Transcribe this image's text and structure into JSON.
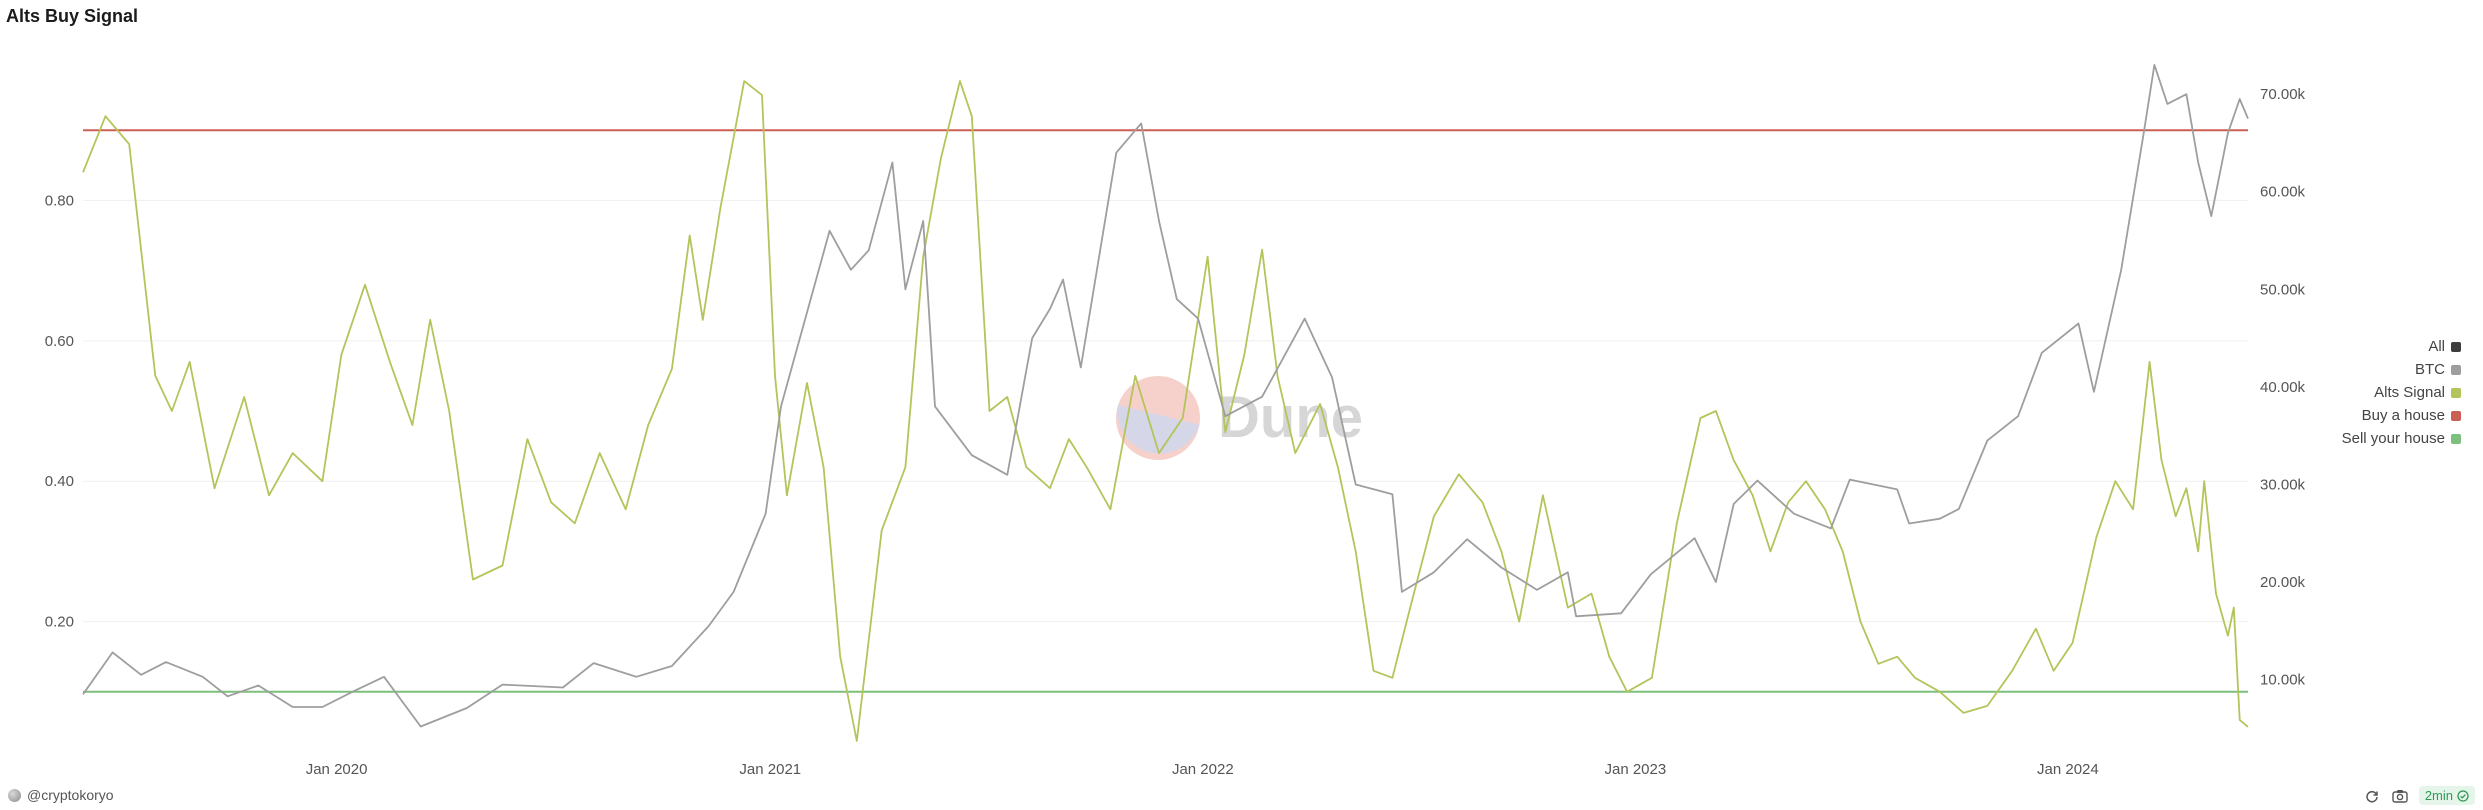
{
  "title": "Alts Buy Signal",
  "author": "@cryptokoryo",
  "refresh_label": "2min",
  "watermark": "Dune",
  "legend": [
    {
      "label": "All",
      "color": "#3d3d3d"
    },
    {
      "label": "BTC",
      "color": "#9e9e9e"
    },
    {
      "label": "Alts Signal",
      "color": "#b5c45a"
    },
    {
      "label": "Buy a house",
      "color": "#cc5f55"
    },
    {
      "label": "Sell your house",
      "color": "#7dbf7d"
    }
  ],
  "icons": {
    "refresh": "refresh-icon",
    "camera": "camera-icon",
    "check": "check-icon"
  },
  "chart_data": {
    "type": "line",
    "x_range": [
      "2019-06-01",
      "2024-06-01"
    ],
    "x_ticks": [
      "Jan 2020",
      "Jan 2021",
      "Jan 2022",
      "Jan 2023",
      "Jan 2024"
    ],
    "left_axis": {
      "ticks": [
        "0.20",
        "0.40",
        "0.60",
        "0.80"
      ],
      "range": [
        0.02,
        1.0
      ]
    },
    "right_axis": {
      "ticks": [
        "10.00k",
        "20.00k",
        "30.00k",
        "40.00k",
        "50.00k",
        "60.00k",
        "70.00k"
      ],
      "range": [
        3000,
        73500
      ]
    },
    "grid": true,
    "series": [
      {
        "name": "Alts Signal",
        "axis": "left",
        "color": "#b5c45a",
        "points": [
          [
            "2019-06-01",
            0.84
          ],
          [
            "2019-06-20",
            0.92
          ],
          [
            "2019-07-10",
            0.88
          ],
          [
            "2019-08-01",
            0.55
          ],
          [
            "2019-08-15",
            0.5
          ],
          [
            "2019-08-30",
            0.57
          ],
          [
            "2019-09-20",
            0.39
          ],
          [
            "2019-10-15",
            0.52
          ],
          [
            "2019-11-05",
            0.38
          ],
          [
            "2019-11-25",
            0.44
          ],
          [
            "2019-12-20",
            0.4
          ],
          [
            "2020-01-05",
            0.58
          ],
          [
            "2020-01-25",
            0.68
          ],
          [
            "2020-02-15",
            0.57
          ],
          [
            "2020-03-05",
            0.48
          ],
          [
            "2020-03-20",
            0.63
          ],
          [
            "2020-04-05",
            0.5
          ],
          [
            "2020-04-25",
            0.26
          ],
          [
            "2020-05-20",
            0.28
          ],
          [
            "2020-06-10",
            0.46
          ],
          [
            "2020-06-30",
            0.37
          ],
          [
            "2020-07-20",
            0.34
          ],
          [
            "2020-08-10",
            0.44
          ],
          [
            "2020-09-01",
            0.36
          ],
          [
            "2020-09-20",
            0.48
          ],
          [
            "2020-10-10",
            0.56
          ],
          [
            "2020-10-25",
            0.75
          ],
          [
            "2020-11-05",
            0.63
          ],
          [
            "2020-11-20",
            0.79
          ],
          [
            "2020-12-10",
            0.97
          ],
          [
            "2020-12-25",
            0.95
          ],
          [
            "2021-01-05",
            0.55
          ],
          [
            "2021-01-15",
            0.38
          ],
          [
            "2021-02-01",
            0.54
          ],
          [
            "2021-02-15",
            0.42
          ],
          [
            "2021-03-01",
            0.15
          ],
          [
            "2021-03-15",
            0.03
          ],
          [
            "2021-04-05",
            0.33
          ],
          [
            "2021-04-25",
            0.42
          ],
          [
            "2021-05-10",
            0.72
          ],
          [
            "2021-05-25",
            0.86
          ],
          [
            "2021-06-10",
            0.97
          ],
          [
            "2021-06-20",
            0.92
          ],
          [
            "2021-07-05",
            0.5
          ],
          [
            "2021-07-20",
            0.52
          ],
          [
            "2021-08-05",
            0.42
          ],
          [
            "2021-08-25",
            0.39
          ],
          [
            "2021-09-10",
            0.46
          ],
          [
            "2021-09-25",
            0.42
          ],
          [
            "2021-10-15",
            0.36
          ],
          [
            "2021-11-05",
            0.55
          ],
          [
            "2021-11-25",
            0.44
          ],
          [
            "2021-12-15",
            0.49
          ],
          [
            "2022-01-05",
            0.72
          ],
          [
            "2022-01-20",
            0.47
          ],
          [
            "2022-02-05",
            0.58
          ],
          [
            "2022-02-20",
            0.73
          ],
          [
            "2022-03-05",
            0.55
          ],
          [
            "2022-03-20",
            0.44
          ],
          [
            "2022-04-10",
            0.51
          ],
          [
            "2022-04-25",
            0.42
          ],
          [
            "2022-05-10",
            0.3
          ],
          [
            "2022-05-25",
            0.13
          ],
          [
            "2022-06-10",
            0.12
          ],
          [
            "2022-06-25",
            0.22
          ],
          [
            "2022-07-15",
            0.35
          ],
          [
            "2022-08-05",
            0.41
          ],
          [
            "2022-08-25",
            0.37
          ],
          [
            "2022-09-10",
            0.3
          ],
          [
            "2022-09-25",
            0.2
          ],
          [
            "2022-10-15",
            0.38
          ],
          [
            "2022-11-05",
            0.22
          ],
          [
            "2022-11-25",
            0.24
          ],
          [
            "2022-12-10",
            0.15
          ],
          [
            "2022-12-25",
            0.1
          ],
          [
            "2023-01-15",
            0.12
          ],
          [
            "2023-02-05",
            0.34
          ],
          [
            "2023-02-25",
            0.49
          ],
          [
            "2023-03-10",
            0.5
          ],
          [
            "2023-03-25",
            0.43
          ],
          [
            "2023-04-10",
            0.38
          ],
          [
            "2023-04-25",
            0.3
          ],
          [
            "2023-05-10",
            0.37
          ],
          [
            "2023-05-25",
            0.4
          ],
          [
            "2023-06-10",
            0.36
          ],
          [
            "2023-06-25",
            0.3
          ],
          [
            "2023-07-10",
            0.2
          ],
          [
            "2023-07-25",
            0.14
          ],
          [
            "2023-08-10",
            0.15
          ],
          [
            "2023-08-25",
            0.12
          ],
          [
            "2023-09-15",
            0.1
          ],
          [
            "2023-10-05",
            0.07
          ],
          [
            "2023-10-25",
            0.08
          ],
          [
            "2023-11-15",
            0.13
          ],
          [
            "2023-12-05",
            0.19
          ],
          [
            "2023-12-20",
            0.13
          ],
          [
            "2024-01-05",
            0.17
          ],
          [
            "2024-01-25",
            0.32
          ],
          [
            "2024-02-10",
            0.4
          ],
          [
            "2024-02-25",
            0.36
          ],
          [
            "2024-03-10",
            0.57
          ],
          [
            "2024-03-20",
            0.43
          ],
          [
            "2024-04-01",
            0.35
          ],
          [
            "2024-04-10",
            0.39
          ],
          [
            "2024-04-20",
            0.3
          ],
          [
            "2024-04-25",
            0.4
          ],
          [
            "2024-05-05",
            0.24
          ],
          [
            "2024-05-15",
            0.18
          ],
          [
            "2024-05-20",
            0.22
          ],
          [
            "2024-05-25",
            0.06
          ],
          [
            "2024-06-01",
            0.05
          ]
        ]
      },
      {
        "name": "BTC",
        "axis": "right",
        "color": "#9e9e9e",
        "points": [
          [
            "2019-06-01",
            8500
          ],
          [
            "2019-06-26",
            12800
          ],
          [
            "2019-07-20",
            10500
          ],
          [
            "2019-08-10",
            11800
          ],
          [
            "2019-09-10",
            10300
          ],
          [
            "2019-10-01",
            8300
          ],
          [
            "2019-10-27",
            9400
          ],
          [
            "2019-11-25",
            7200
          ],
          [
            "2019-12-20",
            7200
          ],
          [
            "2020-01-15",
            8800
          ],
          [
            "2020-02-10",
            10300
          ],
          [
            "2020-03-12",
            5200
          ],
          [
            "2020-04-20",
            7100
          ],
          [
            "2020-05-20",
            9500
          ],
          [
            "2020-07-10",
            9200
          ],
          [
            "2020-08-05",
            11700
          ],
          [
            "2020-09-10",
            10300
          ],
          [
            "2020-10-10",
            11400
          ],
          [
            "2020-11-10",
            15500
          ],
          [
            "2020-12-01",
            19000
          ],
          [
            "2020-12-28",
            27000
          ],
          [
            "2021-01-10",
            38000
          ],
          [
            "2021-02-20",
            56000
          ],
          [
            "2021-03-10",
            52000
          ],
          [
            "2021-03-25",
            54000
          ],
          [
            "2021-04-14",
            63000
          ],
          [
            "2021-04-25",
            50000
          ],
          [
            "2021-05-10",
            57000
          ],
          [
            "2021-05-20",
            38000
          ],
          [
            "2021-06-20",
            33000
          ],
          [
            "2021-07-20",
            31000
          ],
          [
            "2021-08-10",
            45000
          ],
          [
            "2021-08-25",
            48000
          ],
          [
            "2021-09-05",
            51000
          ],
          [
            "2021-09-20",
            42000
          ],
          [
            "2021-10-20",
            64000
          ],
          [
            "2021-11-10",
            67000
          ],
          [
            "2021-11-25",
            57000
          ],
          [
            "2021-12-10",
            49000
          ],
          [
            "2021-12-28",
            47000
          ],
          [
            "2022-01-20",
            37000
          ],
          [
            "2022-02-20",
            39000
          ],
          [
            "2022-03-28",
            47000
          ],
          [
            "2022-04-20",
            41000
          ],
          [
            "2022-05-10",
            30000
          ],
          [
            "2022-06-10",
            29000
          ],
          [
            "2022-06-18",
            19000
          ],
          [
            "2022-07-15",
            21000
          ],
          [
            "2022-08-12",
            24400
          ],
          [
            "2022-09-10",
            21500
          ],
          [
            "2022-10-10",
            19200
          ],
          [
            "2022-11-05",
            21000
          ],
          [
            "2022-11-12",
            16500
          ],
          [
            "2022-12-20",
            16800
          ],
          [
            "2023-01-14",
            20800
          ],
          [
            "2023-02-20",
            24500
          ],
          [
            "2023-03-10",
            20000
          ],
          [
            "2023-03-25",
            28000
          ],
          [
            "2023-04-14",
            30400
          ],
          [
            "2023-05-15",
            27000
          ],
          [
            "2023-06-15",
            25500
          ],
          [
            "2023-07-01",
            30500
          ],
          [
            "2023-08-10",
            29500
          ],
          [
            "2023-08-20",
            26000
          ],
          [
            "2023-09-15",
            26500
          ],
          [
            "2023-10-01",
            27500
          ],
          [
            "2023-10-25",
            34500
          ],
          [
            "2023-11-20",
            37000
          ],
          [
            "2023-12-10",
            43500
          ],
          [
            "2024-01-10",
            46500
          ],
          [
            "2024-01-23",
            39500
          ],
          [
            "2024-02-15",
            52000
          ],
          [
            "2024-03-05",
            66000
          ],
          [
            "2024-03-14",
            73000
          ],
          [
            "2024-03-25",
            69000
          ],
          [
            "2024-04-10",
            70000
          ],
          [
            "2024-04-20",
            63000
          ],
          [
            "2024-05-01",
            57500
          ],
          [
            "2024-05-15",
            66000
          ],
          [
            "2024-05-25",
            69500
          ],
          [
            "2024-06-01",
            67500
          ]
        ]
      },
      {
        "name": "Buy a house",
        "axis": "left",
        "color": "#cc5f55",
        "points": [
          [
            "2019-06-01",
            0.9
          ],
          [
            "2024-06-01",
            0.9
          ]
        ]
      },
      {
        "name": "Sell your house",
        "axis": "left",
        "color": "#7dbf7d",
        "points": [
          [
            "2019-06-01",
            0.1
          ],
          [
            "2024-06-01",
            0.1
          ]
        ]
      }
    ]
  }
}
